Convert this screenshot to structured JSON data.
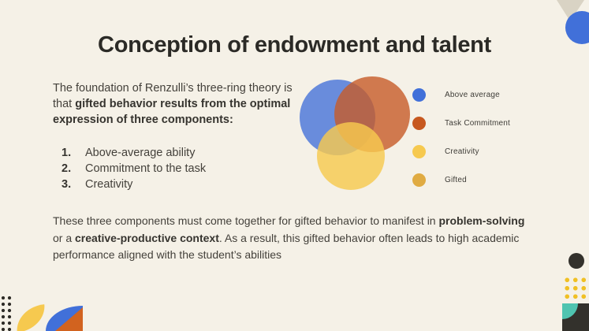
{
  "palette": {
    "background": "#f5f1e7",
    "title_text": "#2b2a26",
    "body_text": "#44413b",
    "blue": "#4170d9",
    "orange": "#c7581f",
    "yellow": "#f6c94f",
    "gold": "#e0ab42",
    "teal": "#4fc4b0",
    "dark": "#33312c",
    "tan": "#d9d3c4"
  },
  "title": "Conception of endowment and talent",
  "intro": {
    "normal": "The foundation of Renzulli’s three-ring theory is that ",
    "bold": "gifted behavior results from the optimal expression of three components:"
  },
  "list": [
    {
      "num": "1.",
      "text": "Above-average ability"
    },
    {
      "num": "2.",
      "text": "Commitment to the task"
    },
    {
      "num": "3.",
      "text": "Creativity"
    }
  ],
  "venn": {
    "circles": [
      {
        "label": "Above average",
        "fill": "rgba(65,112,217,0.78)"
      },
      {
        "label": "Task Commitment",
        "fill": "rgba(199,91,40,0.80)"
      },
      {
        "label": "Creativity",
        "fill": "rgba(246,201,79,0.82)"
      }
    ]
  },
  "legend": [
    {
      "label": "Above average",
      "color": "#4170d9"
    },
    {
      "label": "Task Commitment",
      "color": "#c7581f"
    },
    {
      "label": "Creativity",
      "color": "#f6c94f"
    },
    {
      "label": "Gifted",
      "color": "#e0ab42"
    }
  ],
  "conclusion": {
    "part1": "These three components must come together for gifted behavior to manifest in ",
    "bold1": "problem-solving",
    "part2": " or a ",
    "bold2": "creative-productive context",
    "part3": ". As a result, this gifted behavior often leads to high academic performance aligned with the student’s abilities"
  }
}
